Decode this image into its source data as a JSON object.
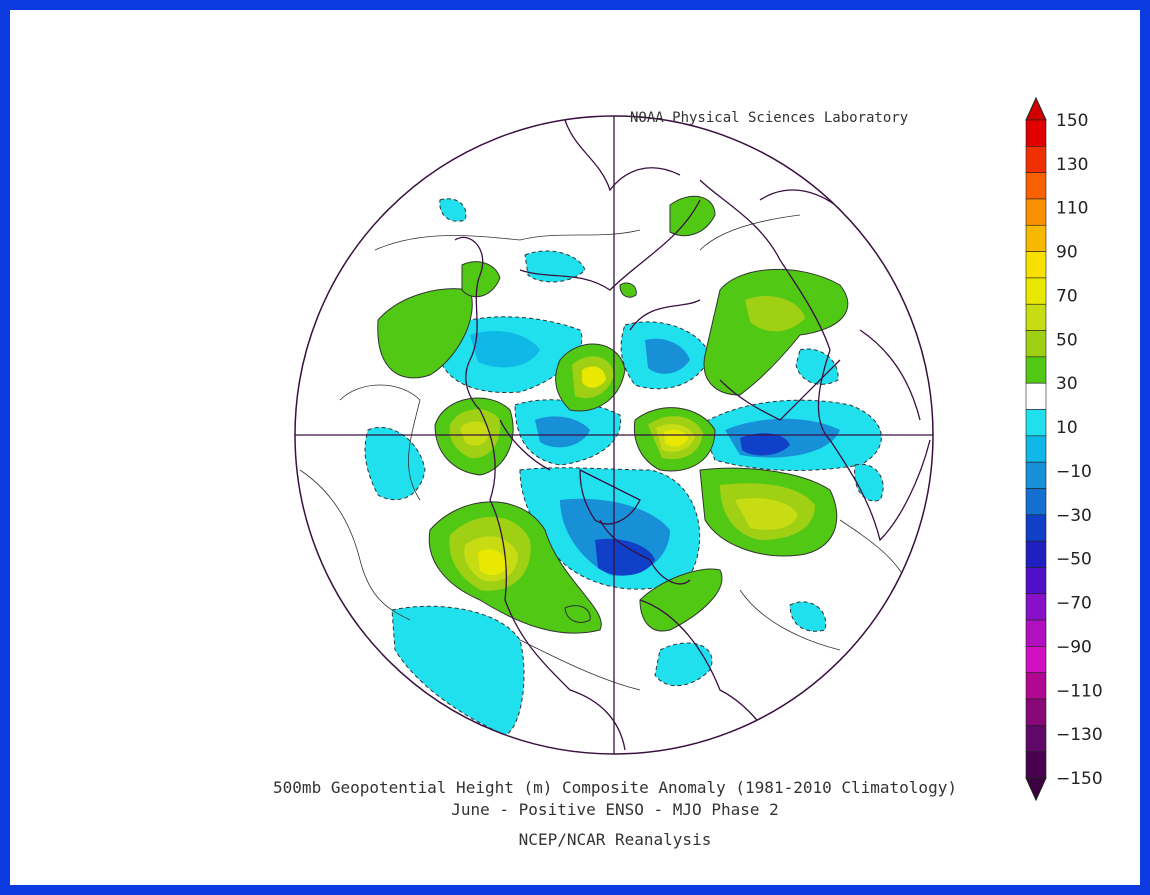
{
  "credit": "NOAA Physical Sciences Laboratory",
  "title_lines": [
    "500mb Geopotential Height (m) Composite Anomaly (1981-2010 Climatology)",
    "June - Positive ENSO - MJO Phase 2",
    "NCEP/NCAR Reanalysis"
  ],
  "colorbar": {
    "labels": [
      "150",
      "130",
      "110",
      "90",
      "70",
      "50",
      "30",
      "10",
      "-10",
      "-30",
      "-50",
      "-70",
      "-90",
      "-110",
      "-130",
      "-150"
    ],
    "colors": [
      "#e00000",
      "#f03000",
      "#f86000",
      "#f89000",
      "#f8b800",
      "#f8e000",
      "#e8e800",
      "#c8dc14",
      "#a0d014",
      "#50c814",
      "#ffffff",
      "#20e0ee",
      "#10b8e8",
      "#1890d8",
      "#1470d0",
      "#1040c8",
      "#2020c0",
      "#5010c8",
      "#8810c8",
      "#b010c0",
      "#d010c0",
      "#b00890",
      "#880878",
      "#600868",
      "#480050"
    ],
    "top_arrow": "#d00000",
    "bottom_arrow": "#3a0040"
  },
  "anomaly_blobs": [
    {
      "name": "alaska-positive",
      "sign": "positive",
      "peak": 50
    },
    {
      "name": "greenland-positive",
      "sign": "positive",
      "peak": 50
    },
    {
      "name": "europe-positive",
      "sign": "positive",
      "peak": 70
    },
    {
      "name": "north-pacific-positive",
      "sign": "positive",
      "peak": 70
    },
    {
      "name": "asia-positive",
      "sign": "positive",
      "peak": 30
    },
    {
      "name": "hudson-bay-negative",
      "sign": "negative",
      "peak": -50
    },
    {
      "name": "east-asia-negative",
      "sign": "negative",
      "peak": -50
    },
    {
      "name": "siberia-negative",
      "sign": "negative",
      "peak": -30
    },
    {
      "name": "atlantic-negative",
      "sign": "negative",
      "peak": -10
    },
    {
      "name": "pacific-negative",
      "sign": "negative",
      "peak": -10
    }
  ]
}
